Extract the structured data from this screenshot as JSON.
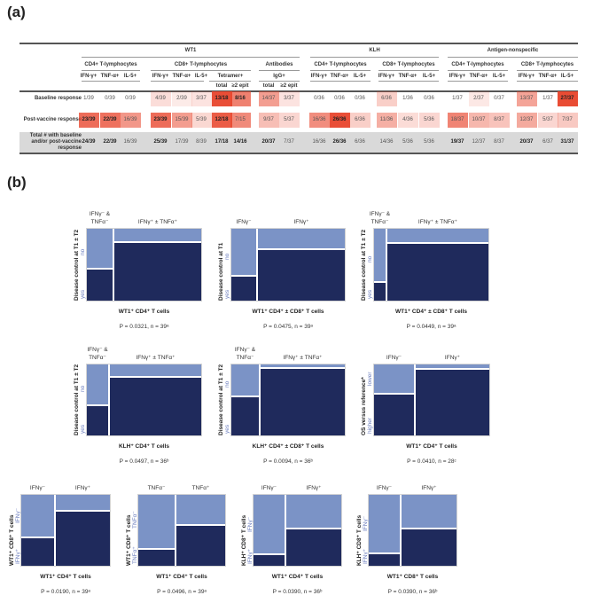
{
  "panel_a_label": "(a)",
  "panel_b_label": "(b)",
  "table": {
    "groups": [
      "WT1",
      "KLH",
      "Antigen-nonspecific"
    ],
    "subgroups": [
      "CD4+ T-lymphocytes",
      "CD8+ T-lymphocytes",
      "Antibodies",
      "CD4+ T-lymphocytes",
      "CD8+ T-lymphocytes",
      "CD4+ T-lymphocytes",
      "CD8+ T-lymphocytes"
    ],
    "tetramer_label": "Tetramer+",
    "igg_label": "IgG+",
    "col_headers": [
      "IFN-γ+",
      "TNF-α+",
      "IL-5+",
      "IFN-γ+",
      "TNF-α+",
      "IL-5+",
      "total",
      "≥2 epit",
      "total",
      "≥2 epit",
      "IFN-γ+",
      "TNF-α+",
      "IL-5+",
      "IFN-γ+",
      "TNF-α+",
      "IL-5+",
      "IFN-γ+",
      "TNF-α+",
      "IL-5+",
      "IFN-γ+",
      "TNF-α+",
      "IL-5+"
    ],
    "rows": [
      {
        "label": "Baseline response",
        "heat": true,
        "values": [
          "1/39",
          "0/39",
          "0/39",
          "4/39",
          "2/39",
          "3/37",
          "13/18",
          "8/16",
          "14/37",
          "3/37",
          "0/36",
          "0/36",
          "0/36",
          "6/36",
          "1/36",
          "0/36",
          "1/37",
          "2/37",
          "0/37",
          "13/37",
          "1/37",
          "27/37"
        ],
        "bold": [
          6,
          7,
          21
        ]
      },
      {
        "label": "Post-vaccine response",
        "heat": true,
        "values": [
          "23/39",
          "22/39",
          "16/39",
          "23/39",
          "15/39",
          "5/39",
          "12/18",
          "7/15",
          "9/37",
          "5/37",
          "16/36",
          "26/36",
          "6/36",
          "11/36",
          "4/36",
          "5/36",
          "18/37",
          "10/37",
          "8/37",
          "12/37",
          "5/37",
          "7/37"
        ],
        "bold": [
          0,
          1,
          3,
          6,
          11
        ]
      },
      {
        "label": "Total # with baseline and/or post-vaccine response",
        "heat": false,
        "values": [
          "24/39",
          "22/39",
          "16/39",
          "25/39",
          "17/39",
          "8/39",
          "17/18",
          "14/16",
          "20/37",
          "7/37",
          "16/36",
          "26/36",
          "6/36",
          "14/36",
          "5/36",
          "5/36",
          "19/37",
          "12/37",
          "8/37",
          "20/37",
          "6/37",
          "31/37"
        ],
        "bold": [
          0,
          1,
          3,
          6,
          7,
          8,
          11,
          16,
          19,
          21
        ]
      }
    ],
    "heat_color": "#e8452c"
  },
  "colors": {
    "no": "#7b93c6",
    "yes": "#1f2a5c",
    "row_label": "#6d7fbf"
  },
  "chart_data": [
    {
      "type": "mosaic",
      "col_labels": [
        "IFNγ⁻ &\nTNFα⁻",
        "IFNγ⁺ ± TNFα⁺"
      ],
      "first_col_share": 0.23,
      "top_row_share": [
        0.55,
        0.18
      ],
      "row_labels": [
        "no",
        "yes"
      ],
      "ylabel": "Disease control at T1 ± T2",
      "xlabel": "WT1⁺ CD4⁺ T cells",
      "stat": "P = 0.0321, n = 39ᵃ"
    },
    {
      "type": "mosaic",
      "col_labels": [
        "IFNγ⁻",
        "IFNγ⁺"
      ],
      "first_col_share": 0.23,
      "top_row_share": [
        0.66,
        0.28
      ],
      "row_labels": [
        "no",
        "yes"
      ],
      "ylabel": "Disease control at T1",
      "xlabel": "WT1⁺ CD4⁺ ± CD8⁺ T cells",
      "stat": "P = 0.0475, n = 39ᵃ"
    },
    {
      "type": "mosaic",
      "col_labels": [
        "IFNγ⁻ &\nTNFα⁻",
        "IFNγ⁺ ± TNFα⁺"
      ],
      "first_col_share": 0.11,
      "top_row_share": [
        0.74,
        0.2
      ],
      "row_labels": [
        "no",
        "yes"
      ],
      "ylabel": "Disease control at T1 ± T2",
      "xlabel": "WT1⁺ CD4⁺ ± CD8⁺ T cells",
      "stat": "P = 0.0449, n = 39ᵃ"
    },
    {
      "type": "mosaic",
      "col_labels": [
        "IFNγ⁻ &\nTNFα⁻",
        "IFNγ⁺ ± TNFα⁺"
      ],
      "first_col_share": 0.19,
      "top_row_share": [
        0.575,
        0.18
      ],
      "row_labels": [
        "no",
        "yes"
      ],
      "ylabel": "Disease control at T1 ± T2",
      "xlabel": "KLH⁺ CD4⁺ T cells",
      "stat": "P = 0.0497, n = 36ᵇ"
    },
    {
      "type": "mosaic",
      "col_labels": [
        "IFNγ⁻ &\nTNFα⁻",
        "IFNγ⁺ ± TNFα⁺"
      ],
      "first_col_share": 0.25,
      "top_row_share": [
        0.45,
        0.045
      ],
      "row_labels": [
        "no",
        "yes"
      ],
      "ylabel": "Disease control at T1 ± T2",
      "xlabel": "KLH⁺ CD4⁺ ± CD8⁺ T cells",
      "stat": "P = 0.0094, n = 36ᵇ"
    },
    {
      "type": "mosaic",
      "col_labels": [
        "IFNγ⁻",
        "IFNγ⁺"
      ],
      "first_col_share": 0.35,
      "top_row_share": [
        0.41,
        0.065
      ],
      "row_labels": [
        "lower",
        "higher"
      ],
      "ylabel": "OS versus reference*",
      "xlabel": "WT1⁺ CD4⁺ T cells",
      "stat": "P = 0.0410, n = 28ᶜ"
    },
    {
      "type": "mosaic",
      "col_labels": [
        "IFNγ⁻",
        "IFNγ⁺"
      ],
      "first_col_share": 0.38,
      "top_row_share": [
        0.6,
        0.22
      ],
      "row_labels": [
        "IFNγ⁻",
        "IFNγ⁺"
      ],
      "ylabel": "WT1⁺ CD8⁺ T cells",
      "xlabel": "WT1⁺ CD4⁺ T cells",
      "stat": "P = 0.0190, n = 39ᵃ"
    },
    {
      "type": "mosaic",
      "col_labels": [
        "TNFα⁻",
        "TNFα⁺"
      ],
      "first_col_share": 0.43,
      "top_row_share": [
        0.76,
        0.42
      ],
      "row_labels": [
        "TNFα⁻",
        "TNFα⁺"
      ],
      "ylabel": "WT1⁺ CD8⁺ T cells",
      "xlabel": "WT1⁺ CD4⁺ T cells",
      "stat": "P = 0.0496, n = 39ᵃ"
    },
    {
      "type": "mosaic",
      "col_labels": [
        "IFNγ⁻",
        "IFNγ⁺"
      ],
      "first_col_share": 0.36,
      "top_row_share": [
        0.84,
        0.48
      ],
      "row_labels": [
        "IFNγ⁻",
        "IFNγ⁺"
      ],
      "ylabel": "KLH⁺ CD8⁺ T cells",
      "xlabel": "WT1⁺ CD4⁺ T cells",
      "stat": "P = 0.0390, n = 36ᵇ"
    },
    {
      "type": "mosaic",
      "col_labels": [
        "IFNγ⁻",
        "IFNγ⁺"
      ],
      "first_col_share": 0.36,
      "top_row_share": [
        0.83,
        0.48
      ],
      "row_labels": [
        "IFNγ⁻",
        "IFNγ⁺"
      ],
      "ylabel": "KLH⁺ CD8⁺ T cells",
      "xlabel": "WT1⁺ CD8⁺ T cells",
      "stat": "P = 0.0390, n = 36ᵇ"
    }
  ]
}
